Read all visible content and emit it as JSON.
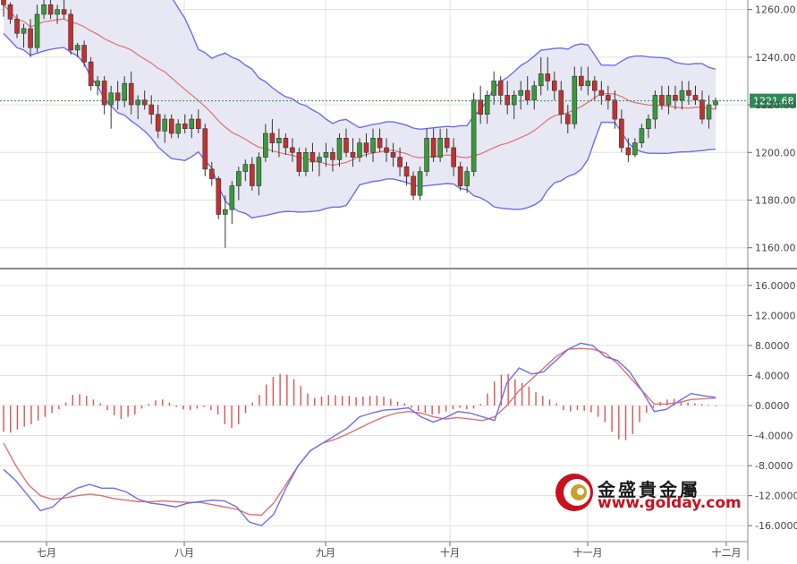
{
  "chart_data": [
    {
      "type": "candlestick",
      "panel": "price",
      "indicators": [
        "Bollinger Bands",
        "Moving Average"
      ],
      "y_ticks": [
        "1260.00",
        "1240.00",
        "1220.00",
        "1200.00",
        "1180.00",
        "1160.00"
      ],
      "ylim": [
        1152,
        1264
      ],
      "last_price_label": "1221.68",
      "last_price": 1221.68,
      "candles": [
        [
          1268,
          1268,
          1257,
          1262
        ],
        [
          1262,
          1263,
          1254,
          1256
        ],
        [
          1256,
          1258,
          1248,
          1250
        ],
        [
          1250,
          1254,
          1244,
          1252
        ],
        [
          1252,
          1256,
          1240,
          1244
        ],
        [
          1244,
          1262,
          1242,
          1258
        ],
        [
          1258,
          1264,
          1256,
          1262
        ],
        [
          1262,
          1264,
          1256,
          1258
        ],
        [
          1258,
          1262,
          1254,
          1260
        ],
        [
          1260,
          1264,
          1256,
          1258
        ],
        [
          1258,
          1260,
          1241,
          1243
        ],
        [
          1243,
          1246,
          1240,
          1245
        ],
        [
          1245,
          1247,
          1236,
          1238
        ],
        [
          1238,
          1240,
          1226,
          1228
        ],
        [
          1228,
          1232,
          1224,
          1230
        ],
        [
          1230,
          1232,
          1216,
          1220
        ],
        [
          1220,
          1228,
          1210,
          1225
        ],
        [
          1225,
          1230,
          1218,
          1222
        ],
        [
          1222,
          1232,
          1219,
          1229
        ],
        [
          1229,
          1234,
          1216,
          1220
        ],
        [
          1220,
          1224,
          1214,
          1222
        ],
        [
          1222,
          1226,
          1218,
          1220
        ],
        [
          1220,
          1224,
          1212,
          1216
        ],
        [
          1216,
          1220,
          1206,
          1209
        ],
        [
          1209,
          1216,
          1204,
          1214
        ],
        [
          1214,
          1216,
          1206,
          1208
        ],
        [
          1208,
          1214,
          1206,
          1212
        ],
        [
          1212,
          1216,
          1208,
          1210
        ],
        [
          1210,
          1216,
          1206,
          1214
        ],
        [
          1214,
          1218,
          1208,
          1210
        ],
        [
          1210,
          1212,
          1190,
          1193
        ],
        [
          1193,
          1196,
          1186,
          1189
        ],
        [
          1189,
          1190,
          1172,
          1174
        ],
        [
          1174,
          1182,
          1160,
          1176
        ],
        [
          1176,
          1188,
          1170,
          1186
        ],
        [
          1186,
          1194,
          1180,
          1192
        ],
        [
          1192,
          1197,
          1188,
          1195
        ],
        [
          1195,
          1198,
          1184,
          1186
        ],
        [
          1186,
          1200,
          1182,
          1198
        ],
        [
          1198,
          1212,
          1196,
          1208
        ],
        [
          1208,
          1214,
          1200,
          1204
        ],
        [
          1204,
          1210,
          1198,
          1206
        ],
        [
          1206,
          1208,
          1199,
          1202
        ],
        [
          1202,
          1206,
          1196,
          1200
        ],
        [
          1200,
          1202,
          1190,
          1192
        ],
        [
          1192,
          1202,
          1190,
          1200
        ],
        [
          1200,
          1204,
          1192,
          1196
        ],
        [
          1196,
          1200,
          1190,
          1198
        ],
        [
          1198,
          1204,
          1194,
          1200
        ],
        [
          1200,
          1202,
          1192,
          1197
        ],
        [
          1197,
          1208,
          1194,
          1206
        ],
        [
          1206,
          1210,
          1198,
          1200
        ],
        [
          1200,
          1206,
          1194,
          1198
        ],
        [
          1198,
          1206,
          1196,
          1204
        ],
        [
          1204,
          1208,
          1198,
          1200
        ],
        [
          1200,
          1210,
          1196,
          1206
        ],
        [
          1206,
          1210,
          1200,
          1202
        ],
        [
          1202,
          1206,
          1196,
          1200
        ],
        [
          1200,
          1204,
          1194,
          1198
        ],
        [
          1198,
          1202,
          1190,
          1194
        ],
        [
          1194,
          1196,
          1186,
          1190
        ],
        [
          1190,
          1192,
          1180,
          1182
        ],
        [
          1182,
          1194,
          1180,
          1192
        ],
        [
          1192,
          1210,
          1190,
          1206
        ],
        [
          1206,
          1210,
          1196,
          1198
        ],
        [
          1198,
          1210,
          1196,
          1206
        ],
        [
          1206,
          1210,
          1200,
          1202
        ],
        [
          1202,
          1206,
          1190,
          1194
        ],
        [
          1194,
          1196,
          1184,
          1186
        ],
        [
          1186,
          1194,
          1183,
          1192
        ],
        [
          1192,
          1225,
          1190,
          1222
        ],
        [
          1222,
          1228,
          1212,
          1216
        ],
        [
          1216,
          1226,
          1212,
          1224
        ],
        [
          1224,
          1234,
          1220,
          1230
        ],
        [
          1230,
          1232,
          1220,
          1224
        ],
        [
          1224,
          1230,
          1216,
          1220
        ],
        [
          1220,
          1226,
          1214,
          1224
        ],
        [
          1224,
          1230,
          1218,
          1226
        ],
        [
          1226,
          1232,
          1220,
          1222
        ],
        [
          1222,
          1230,
          1218,
          1228
        ],
        [
          1228,
          1240,
          1224,
          1233
        ],
        [
          1233,
          1240,
          1226,
          1230
        ],
        [
          1230,
          1234,
          1222,
          1226
        ],
        [
          1226,
          1230,
          1212,
          1216
        ],
        [
          1216,
          1220,
          1208,
          1212
        ],
        [
          1212,
          1236,
          1210,
          1232
        ],
        [
          1232,
          1236,
          1226,
          1228
        ],
        [
          1228,
          1236,
          1224,
          1230
        ],
        [
          1230,
          1232,
          1222,
          1226
        ],
        [
          1226,
          1230,
          1220,
          1224
        ],
        [
          1224,
          1228,
          1218,
          1222
        ],
        [
          1222,
          1226,
          1210,
          1214
        ],
        [
          1214,
          1218,
          1200,
          1202
        ],
        [
          1202,
          1206,
          1196,
          1199
        ],
        [
          1199,
          1206,
          1198,
          1204
        ],
        [
          1204,
          1212,
          1202,
          1210
        ],
        [
          1210,
          1216,
          1206,
          1214
        ],
        [
          1214,
          1226,
          1210,
          1224
        ],
        [
          1224,
          1228,
          1218,
          1220
        ],
        [
          1220,
          1228,
          1216,
          1224
        ],
        [
          1224,
          1228,
          1218,
          1222
        ],
        [
          1222,
          1230,
          1218,
          1226
        ],
        [
          1226,
          1230,
          1220,
          1224
        ],
        [
          1224,
          1228,
          1220,
          1222
        ],
        [
          1222,
          1226,
          1212,
          1214
        ],
        [
          1214,
          1224,
          1210,
          1220
        ],
        [
          1220,
          1223,
          1218,
          1221.68
        ]
      ]
    },
    {
      "type": "line+bar",
      "panel": "MACD",
      "y_ticks": [
        "16.0000",
        "12.0000",
        "8.0000",
        "4.0000",
        "0.0000",
        "-4.0000",
        "-8.0000",
        "-12.0000",
        "-16.0000"
      ],
      "ylim": [
        -18,
        18
      ],
      "x_tick_labels": [
        "七月",
        "八月",
        "九月",
        "十月",
        "十一月",
        "十二月"
      ],
      "series": [],
      "fast_line_values": [
        -8.5,
        -10,
        -12,
        -14,
        -13.5,
        -12,
        -11,
        -10.5,
        -11,
        -11,
        -11.5,
        -12.5,
        -13,
        -13.2,
        -13.5,
        -13,
        -12.8,
        -12.6,
        -12.7,
        -13.5,
        -15.5,
        -16,
        -14.5,
        -11,
        -8,
        -6,
        -5,
        -4,
        -3,
        -1.5,
        -1,
        -0.6,
        -0.5,
        -0.3,
        -1.5,
        -2.2,
        -1.6,
        -0.8,
        -1,
        -1.5,
        -2,
        3,
        5,
        4.2,
        4.5,
        6,
        7.5,
        8.3,
        8,
        6.5,
        6,
        4.5,
        2,
        -0.8,
        -0.5,
        0.6,
        1.6,
        1.3,
        1.1
      ],
      "signal_line_values": [
        -5,
        -8,
        -10.5,
        -12,
        -12.5,
        -12.3,
        -12,
        -11.8,
        -12,
        -12.4,
        -12.6,
        -12.8,
        -12.8,
        -12.7,
        -12.8,
        -12.9,
        -12.9,
        -13.2,
        -13.5,
        -13.8,
        -14.5,
        -14.6,
        -13,
        -10.5,
        -8,
        -6,
        -5,
        -4.5,
        -3.8,
        -3,
        -2.2,
        -1.5,
        -1,
        -0.8,
        -1,
        -1.5,
        -1.8,
        -1.6,
        -1.8,
        -2,
        -1.5,
        0,
        2,
        3.5,
        5,
        6.5,
        7.5,
        7.6,
        7.5,
        7,
        5.6,
        3.8,
        2,
        0.2,
        0.2,
        0.4,
        0.8,
        0.9,
        1
      ],
      "histogram_values": [
        -3.5,
        -3.6,
        -3.2,
        -2.8,
        -2.5,
        -2,
        -1.5,
        -1,
        -0.5,
        0.4,
        1.4,
        1.5,
        1.3,
        0.8,
        0.3,
        -0.6,
        -1.3,
        -1.8,
        -1.5,
        -1.2,
        -0.4,
        0.2,
        0.7,
        0.8,
        0.4,
        -0.2,
        -0.5,
        -0.6,
        -0.4,
        -0.2,
        -0.6,
        -1.2,
        -2.5,
        -3.0,
        -2.5,
        -1,
        0.4,
        1.4,
        2.8,
        3.8,
        4.2,
        4.1,
        3.5,
        2.6,
        1.6,
        1.0,
        1.2,
        1.4,
        1.4,
        1.3,
        1.3,
        1.1,
        1.2,
        1.3,
        1.3,
        1.2,
        0.9,
        0.5,
        0.3,
        -0.3,
        -0.7,
        -1.0,
        -1.2,
        -1.1,
        -0.8,
        -0.5,
        -0.3,
        -0.5,
        -0.4,
        0.2,
        1.6,
        3.2,
        4.1,
        4.2,
        3.5,
        3.0,
        2.5,
        1.8,
        1.3,
        0.8,
        0.3,
        -0.6,
        -0.8,
        -0.6,
        -0.7,
        -0.9,
        -1.5,
        -2.2,
        -3.5,
        -4.5,
        -4.6,
        -3.8,
        -2.2,
        -1.0,
        -0.3,
        0.5,
        0.8,
        0.9,
        0.6,
        0.4,
        0.3,
        0.2,
        0.1,
        -0.1
      ]
    }
  ],
  "watermark": {
    "chinese_name": "金盛貴金屬",
    "url": "www.golday.com"
  },
  "colors": {
    "up": "#3a9a3a",
    "down": "#c43030",
    "band": "#6a6ef0",
    "band_fill": "#e4e4f2",
    "ma": "#e07070",
    "histogram": "#e05050",
    "macd_fast": "#6a6ef0",
    "macd_signal": "#e07070",
    "grid": "#e0e0e0",
    "axis_text": "#444444",
    "price_tag": "#2e8b57"
  }
}
